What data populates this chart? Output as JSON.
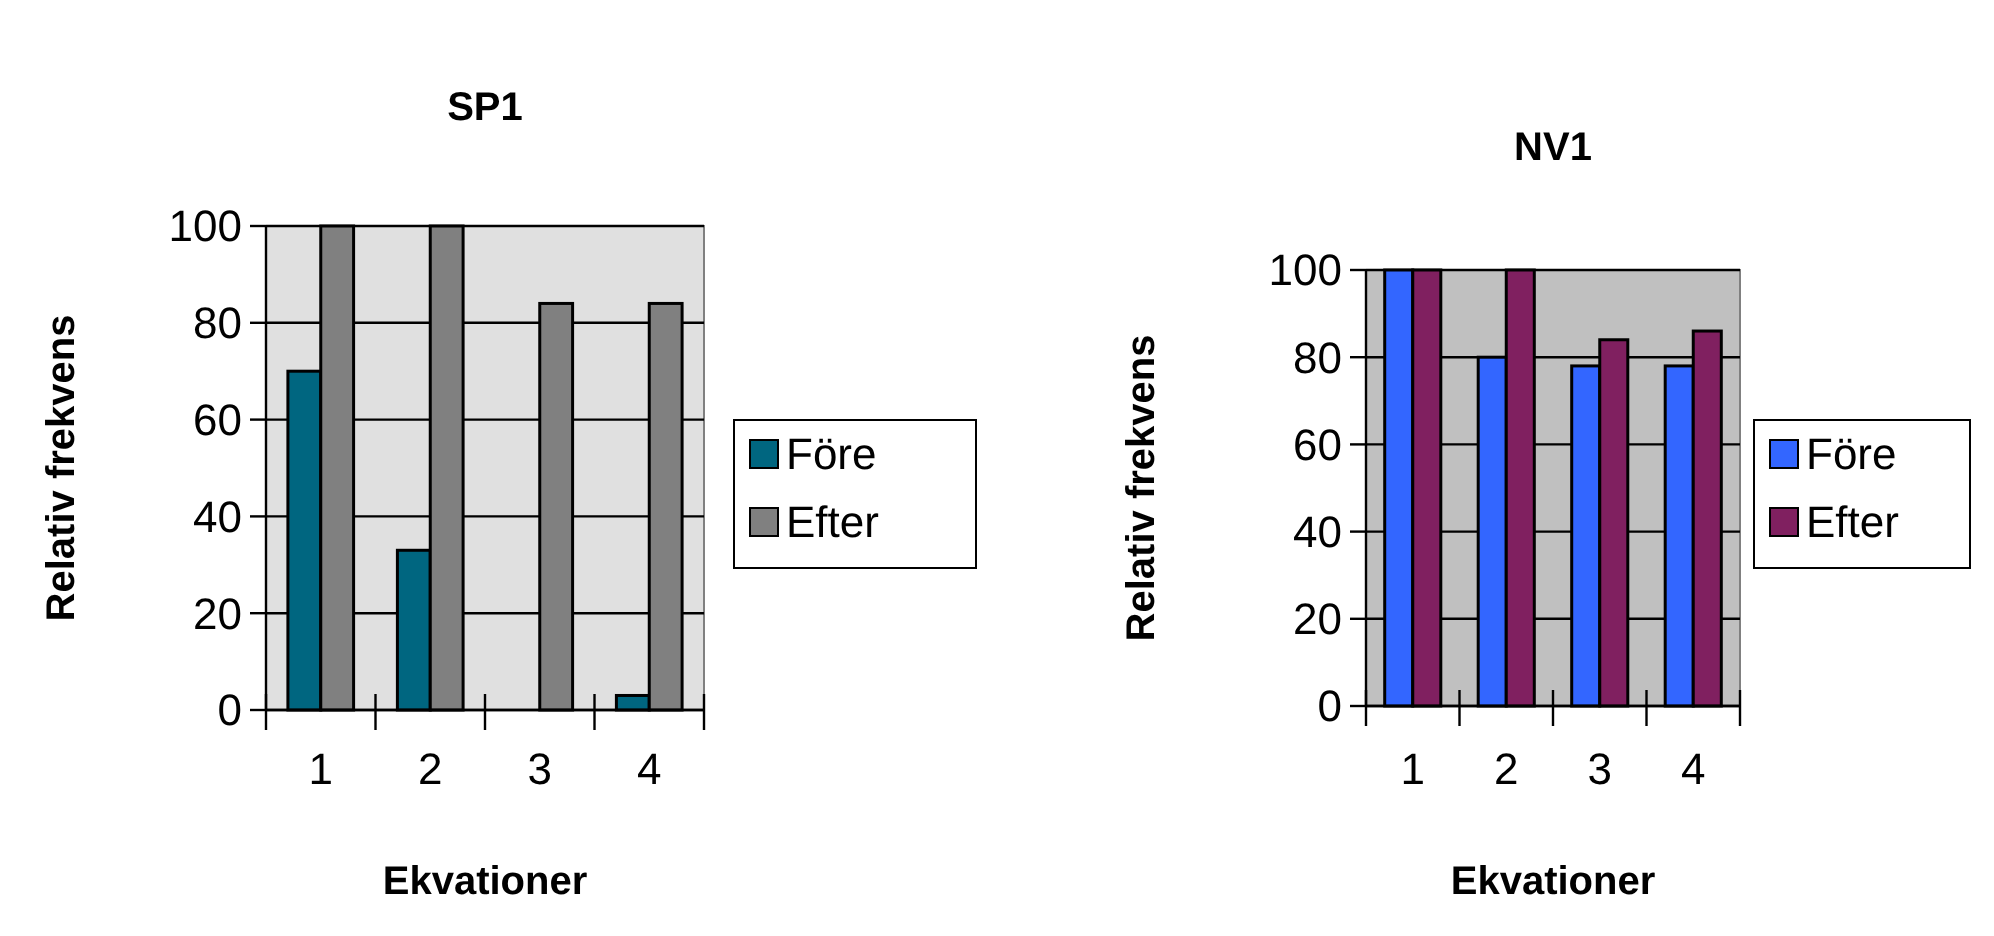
{
  "chart_data": [
    {
      "type": "bar",
      "title": "SP1",
      "xlabel": "Ekvationer",
      "ylabel": "Relativ frekvens",
      "categories": [
        "1",
        "2",
        "3",
        "4"
      ],
      "series": [
        {
          "name": "Före",
          "color": "#006680",
          "values": [
            70,
            33,
            0,
            3
          ]
        },
        {
          "name": "Efter",
          "color": "#808080",
          "values": [
            100,
            100,
            84,
            84
          ]
        }
      ],
      "ylim": [
        0,
        100
      ],
      "yticks": [
        0,
        20,
        40,
        60,
        80,
        100
      ],
      "grid": "y",
      "legend": "right"
    },
    {
      "type": "bar",
      "title": "NV1",
      "xlabel": "Ekvationer",
      "ylabel": "Relativ frekvens",
      "categories": [
        "1",
        "2",
        "3",
        "4"
      ],
      "series": [
        {
          "name": "Före",
          "color": "#3366ff",
          "values": [
            100,
            80,
            78,
            78
          ]
        },
        {
          "name": "Efter",
          "color": "#802060",
          "values": [
            100,
            100,
            84,
            86
          ]
        }
      ],
      "ylim": [
        0,
        100
      ],
      "yticks": [
        0,
        20,
        40,
        60,
        80,
        100
      ],
      "grid": "y",
      "legend": "right"
    }
  ]
}
